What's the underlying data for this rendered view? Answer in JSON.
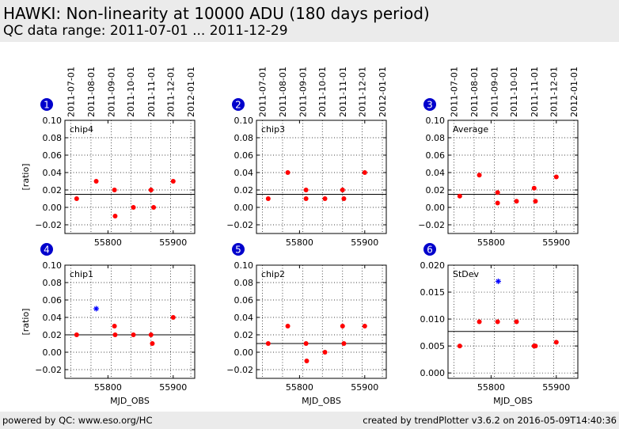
{
  "header": {
    "title": "HAWKI: Non-linearity at 10000 ADU (180 days period)",
    "subtitle": "QC data range: 2011-07-01 ... 2011-12-29"
  },
  "footer": {
    "left": "powered by QC: www.eso.org/HC",
    "right": "created by trendPlotter v3.6.2 on 2016-05-09T14:40:36"
  },
  "date_ticks": [
    "2011-07-01",
    "2011-08-01",
    "2011-09-01",
    "2011-10-01",
    "2011-11-01",
    "2011-12-01",
    "2012-01-01"
  ],
  "chart_data": [
    {
      "type": "scatter",
      "panel_number": "1",
      "title": "chip4",
      "xlabel": "",
      "ylabel": "[ratio]",
      "xlim": [
        55734,
        55933
      ],
      "ylim": [
        -0.03,
        0.1
      ],
      "xticks": [
        55800,
        55900
      ],
      "yticks": [
        -0.02,
        0.0,
        0.02,
        0.04,
        0.06,
        0.08,
        0.1
      ],
      "ytick_labels": [
        "−0.02",
        "0.00",
        "0.02",
        "0.04",
        "0.06",
        "0.08",
        "0.10"
      ],
      "reference_line": 0.015,
      "series": [
        {
          "marker": "dot",
          "color": "#ff0000",
          "x": [
            55752,
            55782,
            55810,
            55811,
            55839,
            55866,
            55870,
            55900
          ],
          "y": [
            0.01,
            0.03,
            0.02,
            -0.01,
            0.0,
            0.02,
            0.0,
            0.03
          ]
        }
      ]
    },
    {
      "type": "scatter",
      "panel_number": "2",
      "title": "chip3",
      "xlabel": "",
      "ylabel": "",
      "xlim": [
        55734,
        55933
      ],
      "ylim": [
        -0.03,
        0.1
      ],
      "xticks": [
        55800,
        55900
      ],
      "yticks": [
        -0.02,
        0.0,
        0.02,
        0.04,
        0.06,
        0.08,
        0.1
      ],
      "ytick_labels": [
        "−0.02",
        "0.00",
        "0.02",
        "0.04",
        "0.06",
        "0.08",
        "0.10"
      ],
      "reference_line": 0.015,
      "series": [
        {
          "marker": "dot",
          "color": "#ff0000",
          "x": [
            55752,
            55782,
            55810,
            55810,
            55839,
            55866,
            55868,
            55900
          ],
          "y": [
            0.01,
            0.04,
            0.02,
            0.01,
            0.01,
            0.02,
            0.01,
            0.04
          ]
        }
      ]
    },
    {
      "type": "scatter",
      "panel_number": "3",
      "title": "Average",
      "xlabel": "",
      "ylabel": "",
      "xlim": [
        55734,
        55933
      ],
      "ylim": [
        -0.03,
        0.1
      ],
      "xticks": [
        55800,
        55900
      ],
      "yticks": [
        -0.02,
        0.0,
        0.02,
        0.04,
        0.06,
        0.08,
        0.1
      ],
      "ytick_labels": [
        "−0.02",
        "0.00",
        "0.02",
        "0.04",
        "0.06",
        "0.08",
        "0.10"
      ],
      "reference_line": 0.015,
      "series": [
        {
          "marker": "dot",
          "color": "#ff0000",
          "x": [
            55752,
            55782,
            55810,
            55810,
            55839,
            55866,
            55868,
            55900
          ],
          "y": [
            0.013,
            0.037,
            0.017,
            0.005,
            0.007,
            0.022,
            0.007,
            0.035
          ]
        }
      ]
    },
    {
      "type": "scatter",
      "panel_number": "4",
      "title": "chip1",
      "xlabel": "MJD_OBS",
      "ylabel": "[ratio]",
      "xlim": [
        55734,
        55933
      ],
      "ylim": [
        -0.03,
        0.1
      ],
      "xticks": [
        55800,
        55900
      ],
      "yticks": [
        -0.02,
        0.0,
        0.02,
        0.04,
        0.06,
        0.08,
        0.1
      ],
      "ytick_labels": [
        "−0.02",
        "0.00",
        "0.02",
        "0.04",
        "0.06",
        "0.08",
        "0.10"
      ],
      "reference_line": 0.02,
      "series": [
        {
          "marker": "dot",
          "color": "#ff0000",
          "x": [
            55752,
            55810,
            55811,
            55839,
            55866,
            55868,
            55900
          ],
          "y": [
            0.02,
            0.03,
            0.02,
            0.02,
            0.02,
            0.01,
            0.04
          ]
        },
        {
          "marker": "star",
          "color": "#0000ff",
          "x": [
            55782
          ],
          "y": [
            0.05
          ]
        }
      ]
    },
    {
      "type": "scatter",
      "panel_number": "5",
      "title": "chip2",
      "xlabel": "MJD_OBS",
      "ylabel": "",
      "xlim": [
        55734,
        55933
      ],
      "ylim": [
        -0.03,
        0.1
      ],
      "xticks": [
        55800,
        55900
      ],
      "yticks": [
        -0.02,
        0.0,
        0.02,
        0.04,
        0.06,
        0.08,
        0.1
      ],
      "ytick_labels": [
        "−0.02",
        "0.00",
        "0.02",
        "0.04",
        "0.06",
        "0.08",
        "0.10"
      ],
      "reference_line": 0.01,
      "series": [
        {
          "marker": "dot",
          "color": "#ff0000",
          "x": [
            55752,
            55782,
            55810,
            55811,
            55839,
            55866,
            55868,
            55900
          ],
          "y": [
            0.01,
            0.03,
            0.01,
            -0.01,
            0.0,
            0.03,
            0.01,
            0.03
          ]
        }
      ]
    },
    {
      "type": "scatter",
      "panel_number": "6",
      "title": "StDev",
      "xlabel": "MJD_OBS",
      "ylabel": "",
      "xlim": [
        55734,
        55933
      ],
      "ylim": [
        -0.001,
        0.02
      ],
      "xticks": [
        55800,
        55900
      ],
      "yticks": [
        0.0,
        0.005,
        0.01,
        0.015,
        0.02
      ],
      "ytick_labels": [
        "0.000",
        "0.005",
        "0.010",
        "0.015",
        "0.020"
      ],
      "reference_line": 0.0077,
      "series": [
        {
          "marker": "dot",
          "color": "#ff0000",
          "x": [
            55752,
            55782,
            55810,
            55839,
            55866,
            55868,
            55900
          ],
          "y": [
            0.005,
            0.0095,
            0.0095,
            0.0095,
            0.005,
            0.005,
            0.0057
          ]
        },
        {
          "marker": "star",
          "color": "#0000ff",
          "x": [
            55811
          ],
          "y": [
            0.017
          ]
        }
      ]
    }
  ]
}
